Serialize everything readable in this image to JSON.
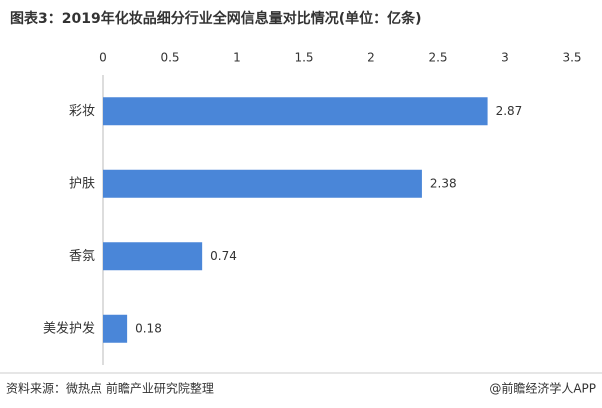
{
  "chart_data": {
    "type": "bar",
    "orientation": "horizontal",
    "title": "图表3：2019年化妆品细分行业全网信息量对比情况(单位：亿条)",
    "categories": [
      "彩妆",
      "护肤",
      "香氛",
      "美发护发"
    ],
    "values": [
      2.87,
      2.38,
      0.74,
      0.18
    ],
    "color": "#4a86d8",
    "xlim": [
      0,
      3.5
    ],
    "xticks": [
      0,
      0.5,
      1,
      1.5,
      2,
      2.5,
      3,
      3.5
    ],
    "grid": false,
    "source": "资料来源：微热点 前瞻产业研究院整理",
    "credit": "@前瞻经济学人APP"
  }
}
